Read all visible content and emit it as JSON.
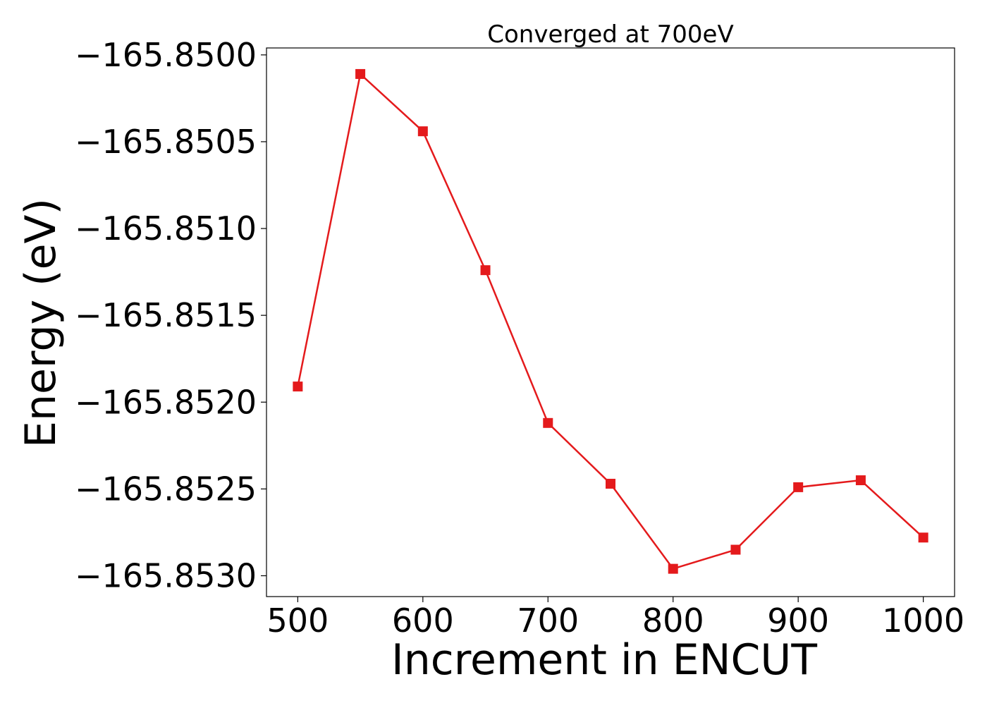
{
  "chart_data": {
    "type": "line",
    "title": "Converged at 700eV",
    "xlabel": "Increment in ENCUT",
    "ylabel": "Energy (eV)",
    "x": [
      500,
      550,
      600,
      650,
      700,
      750,
      800,
      850,
      900,
      950,
      1000
    ],
    "series": [
      {
        "values": [
          -165.85191,
          -165.85011,
          -165.85044,
          -165.85124,
          -165.85212,
          -165.85247,
          -165.85296,
          -165.85285,
          -165.85249,
          -165.85245,
          -165.85278
        ],
        "color": "#e41a1c",
        "marker": "square"
      }
    ],
    "xticks": [
      500,
      600,
      700,
      800,
      900,
      1000
    ],
    "xtick_labels": [
      "500",
      "600",
      "700",
      "800",
      "900",
      "1000"
    ],
    "yticks": [
      -165.85,
      -165.8505,
      -165.851,
      -165.8515,
      -165.852,
      -165.8525,
      -165.853
    ],
    "ytick_labels": [
      "−165.8500",
      "−165.8505",
      "−165.8510",
      "−165.8515",
      "−165.8520",
      "−165.8525",
      "−165.8530"
    ],
    "xlim": [
      475,
      1025
    ],
    "ylim": [
      -165.85312,
      -165.84996
    ],
    "grid": false,
    "legend": "none"
  }
}
